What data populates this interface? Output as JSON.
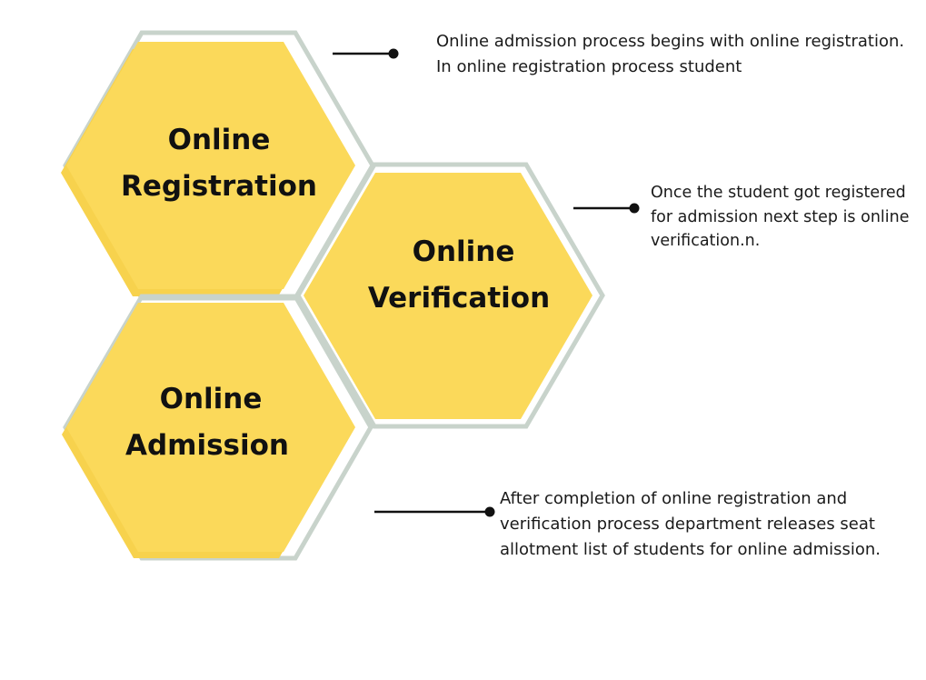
{
  "colors": {
    "hex_fill": "#fbd95a",
    "hex_outline": "#c8d3cb",
    "connector": "#111111",
    "text": "#111111"
  },
  "hexagons": [
    {
      "line1": "Online",
      "line2": "Registration"
    },
    {
      "line1": "Online",
      "line2": "Verification"
    },
    {
      "line1": "Online",
      "line2": "Admission"
    }
  ],
  "descriptions": [
    {
      "text": "Online admission process begins with online registration. In online registration process student"
    },
    {
      "text": "Once the student got registered for admission next step is online verification.n."
    },
    {
      "text": "After completion of online registration and verification process department releases seat allotment list of students for online admission."
    }
  ]
}
